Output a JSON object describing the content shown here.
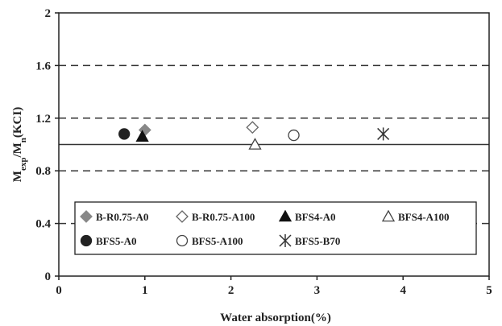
{
  "chart_data": {
    "type": "scatter",
    "xlabel": "Water absorption(%)",
    "ylabel": "M",
    "ylabel_sub1": "exp",
    "ylabel_mid": "/M",
    "ylabel_sub2": "n",
    "ylabel_tail": "(KCI)",
    "xlim": [
      0,
      5
    ],
    "ylim": [
      0,
      2
    ],
    "x_ticks": [
      "0",
      "1",
      "2",
      "3",
      "4",
      "5"
    ],
    "y_ticks": [
      "0",
      "0.4",
      "0.8",
      "1.2",
      "1.6",
      "2"
    ],
    "dashed_gridlines_y": [
      0.4,
      0.8,
      1.2,
      1.6
    ],
    "reference_line_y": 1.0,
    "legend_placement": "bottom-inside",
    "series": [
      {
        "name": "B-R0.75-A0",
        "marker": "diamond-filled",
        "color": "#888888",
        "x": [
          1.0
        ],
        "y": [
          1.11
        ]
      },
      {
        "name": "B-R0.75-A100",
        "marker": "diamond-open",
        "color": "#666666",
        "x": [
          2.25
        ],
        "y": [
          1.13
        ]
      },
      {
        "name": "BFS4-A0",
        "marker": "triangle-filled",
        "color": "#111111",
        "x": [
          0.97
        ],
        "y": [
          1.06
        ]
      },
      {
        "name": "BFS4-A100",
        "marker": "triangle-open",
        "color": "#444444",
        "x": [
          2.28
        ],
        "y": [
          1.0
        ]
      },
      {
        "name": "BFS5-A0",
        "marker": "circle-filled",
        "color": "#222222",
        "x": [
          0.76
        ],
        "y": [
          1.08
        ]
      },
      {
        "name": "BFS5-A100",
        "marker": "circle-open",
        "color": "#444444",
        "x": [
          2.73
        ],
        "y": [
          1.07
        ]
      },
      {
        "name": "BFS5-B70",
        "marker": "asterisk",
        "color": "#333333",
        "x": [
          3.77
        ],
        "y": [
          1.08
        ]
      }
    ]
  }
}
